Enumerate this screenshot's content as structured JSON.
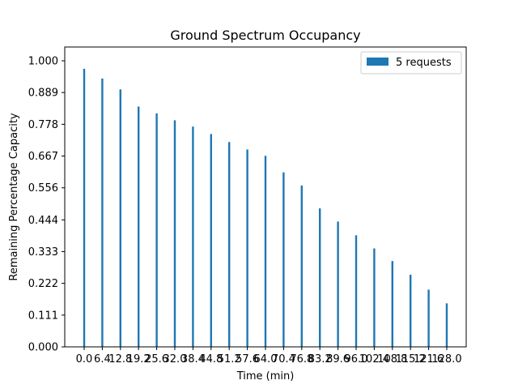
{
  "chart_data": {
    "type": "bar",
    "title": "Ground Spectrum Occupancy",
    "xlabel": "Time (min)",
    "ylabel": "Remaining Percentage Capacity",
    "ylim": [
      0,
      1.0
    ],
    "yticks": [
      "0.000",
      "0.111",
      "0.222",
      "0.333",
      "0.444",
      "0.556",
      "0.667",
      "0.778",
      "0.889",
      "1.000"
    ],
    "categories": [
      "0.0",
      "6.4",
      "12.8",
      "19.2",
      "25.6",
      "32.0",
      "38.4",
      "44.8",
      "51.2",
      "57.6",
      "64.0",
      "70.4",
      "76.8",
      "83.2",
      "89.6",
      "96.0",
      "102.4",
      "108.8",
      "115.2",
      "121.6",
      "128.0"
    ],
    "series": [
      {
        "name": "5 requests",
        "color": "#1f77b4",
        "values": [
          0.972,
          0.938,
          0.9,
          0.84,
          0.816,
          0.792,
          0.77,
          0.744,
          0.716,
          0.69,
          0.668,
          0.61,
          0.564,
          0.484,
          0.438,
          0.39,
          0.344,
          0.3,
          0.252,
          0.2,
          0.152
        ]
      }
    ],
    "legend": "top-right",
    "grid": false
  }
}
